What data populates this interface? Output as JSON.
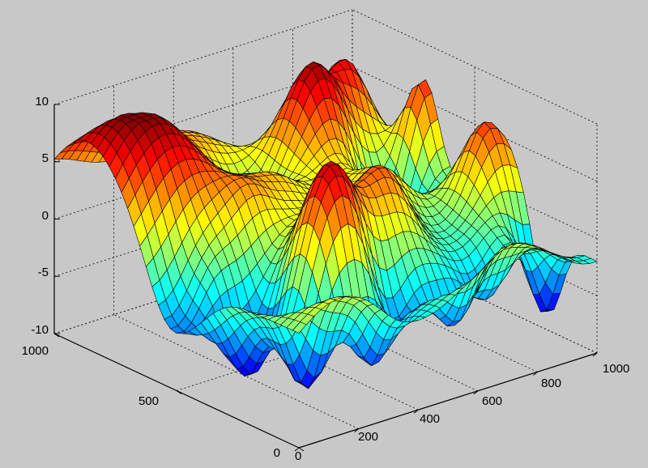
{
  "chart_data": {
    "type": "surface3d",
    "title": "",
    "xlabel": "",
    "ylabel": "",
    "zlabel": "",
    "colormap": "jet",
    "grid": true,
    "xlim": [
      0,
      1000
    ],
    "ylim": [
      0,
      1000
    ],
    "zlim": [
      -10,
      10
    ],
    "x_ticks": [
      "0",
      "200",
      "400",
      "600",
      "800",
      "1000"
    ],
    "y_ticks": [
      "0",
      "500",
      "1000"
    ],
    "z_ticks": [
      "-10",
      "-5",
      "0",
      "5",
      "10"
    ],
    "mesh": {
      "nx": 40,
      "ny": 40
    }
  }
}
